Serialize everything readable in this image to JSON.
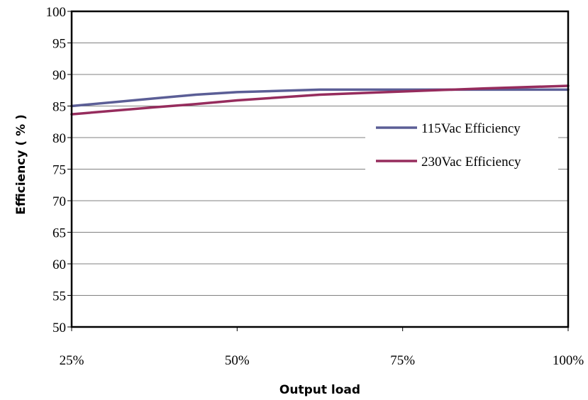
{
  "chart_data": {
    "type": "line",
    "categories": [
      "25%",
      "50%",
      "75%",
      "100%"
    ],
    "x": [
      25,
      37.5,
      43.75,
      50,
      62.5,
      75,
      87.5,
      100
    ],
    "xlabel": "Output load",
    "ylabel": "Efficiency ( % )",
    "ylim": [
      50,
      100
    ],
    "yticks": [
      "50",
      "55",
      "60",
      "65",
      "70",
      "75",
      "80",
      "85",
      "90",
      "95",
      "100"
    ],
    "grid": "horizontal",
    "legend_position": "right",
    "series": [
      {
        "name": "115Vac Efficiency",
        "color": "#5b5e96",
        "values": [
          85.0,
          86.2,
          86.8,
          87.2,
          87.6,
          87.6,
          87.6,
          87.6
        ]
      },
      {
        "name": "230Vac Efficiency",
        "color": "#962c5d",
        "values": [
          83.7,
          84.8,
          85.3,
          85.9,
          86.8,
          87.3,
          87.8,
          88.2
        ]
      }
    ]
  }
}
